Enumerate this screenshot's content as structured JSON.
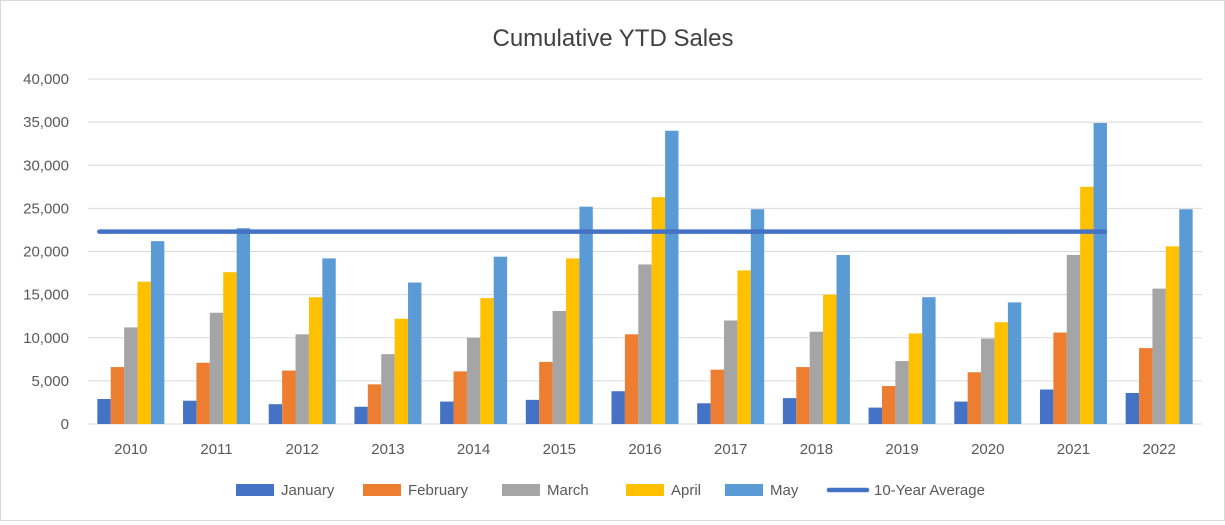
{
  "chart_data": {
    "type": "bar",
    "title": "Cumulative YTD Sales",
    "xlabel": "",
    "ylabel": "",
    "ylim": [
      0,
      40000
    ],
    "ytick_values": [
      0,
      5000,
      10000,
      15000,
      20000,
      25000,
      30000,
      35000,
      40000
    ],
    "ytick_labels": [
      "0",
      "5,000",
      "10,000",
      "15,000",
      "20,000",
      "25,000",
      "30,000",
      "35,000",
      "40,000"
    ],
    "grid": true,
    "legend_position": "bottom",
    "categories": [
      "2010",
      "2011",
      "2012",
      "2013",
      "2014",
      "2015",
      "2016",
      "2017",
      "2018",
      "2019",
      "2020",
      "2021",
      "2022"
    ],
    "series": [
      {
        "name": "January",
        "color": "#4472C4",
        "values": [
          2900,
          2700,
          2300,
          2000,
          2600,
          2800,
          3800,
          2400,
          3000,
          1900,
          2600,
          4000,
          3600
        ]
      },
      {
        "name": "February",
        "color": "#ED7D31",
        "values": [
          6600,
          7100,
          6200,
          4600,
          6100,
          7200,
          10400,
          6300,
          6600,
          4400,
          6000,
          10600,
          8800
        ]
      },
      {
        "name": "March",
        "color": "#A5A5A5",
        "values": [
          11200,
          12900,
          10400,
          8100,
          10000,
          13100,
          18500,
          12000,
          10700,
          7300,
          9900,
          19600,
          15700
        ]
      },
      {
        "name": "April",
        "color": "#FFC000",
        "values": [
          16500,
          17600,
          14700,
          12200,
          14600,
          19200,
          26300,
          17800,
          15000,
          10500,
          11800,
          27500,
          20600
        ]
      },
      {
        "name": "May",
        "color": "#5B9BD5",
        "values": [
          21200,
          22700,
          19200,
          16400,
          19400,
          25200,
          34000,
          24900,
          19600,
          14700,
          14100,
          34900,
          24900
        ]
      }
    ],
    "lines": [
      {
        "name": "10-Year Average",
        "color": "#4472C4",
        "value": 22300,
        "from_category": "2010",
        "to_category": "2021"
      }
    ]
  }
}
